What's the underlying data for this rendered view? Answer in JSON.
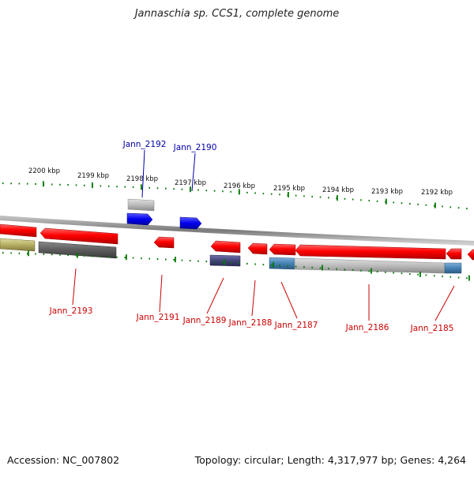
{
  "title": "Jannaschia sp. CCS1, complete genome",
  "footer": {
    "accession": "Accession: NC_007802",
    "summary": "Topology: circular; Length: 4,317,977 bp; Genes: 4,264"
  },
  "colors": {
    "forward_gene": "#ff0000",
    "reverse_gene_blue": "#0000ff",
    "label_red": "#cc0000",
    "label_blue": "#0000aa",
    "tick_green": "#007700",
    "backbone": "#888888"
  },
  "ruler_labels": [
    "2200 kbp",
    "2199 kbp",
    "2198 kbp",
    "2197 kbp",
    "2196 kbp",
    "2195 kbp",
    "2194 kbp",
    "2193 kbp",
    "2192 kbp"
  ],
  "gene_labels_top": [
    "Jann_2192",
    "Jann_2190"
  ],
  "gene_labels_bottom": [
    "Jann_2193",
    "Jann_2191",
    "Jann_2189",
    "Jann_2188",
    "Jann_2187",
    "Jann_2186",
    "Jann_2185"
  ]
}
